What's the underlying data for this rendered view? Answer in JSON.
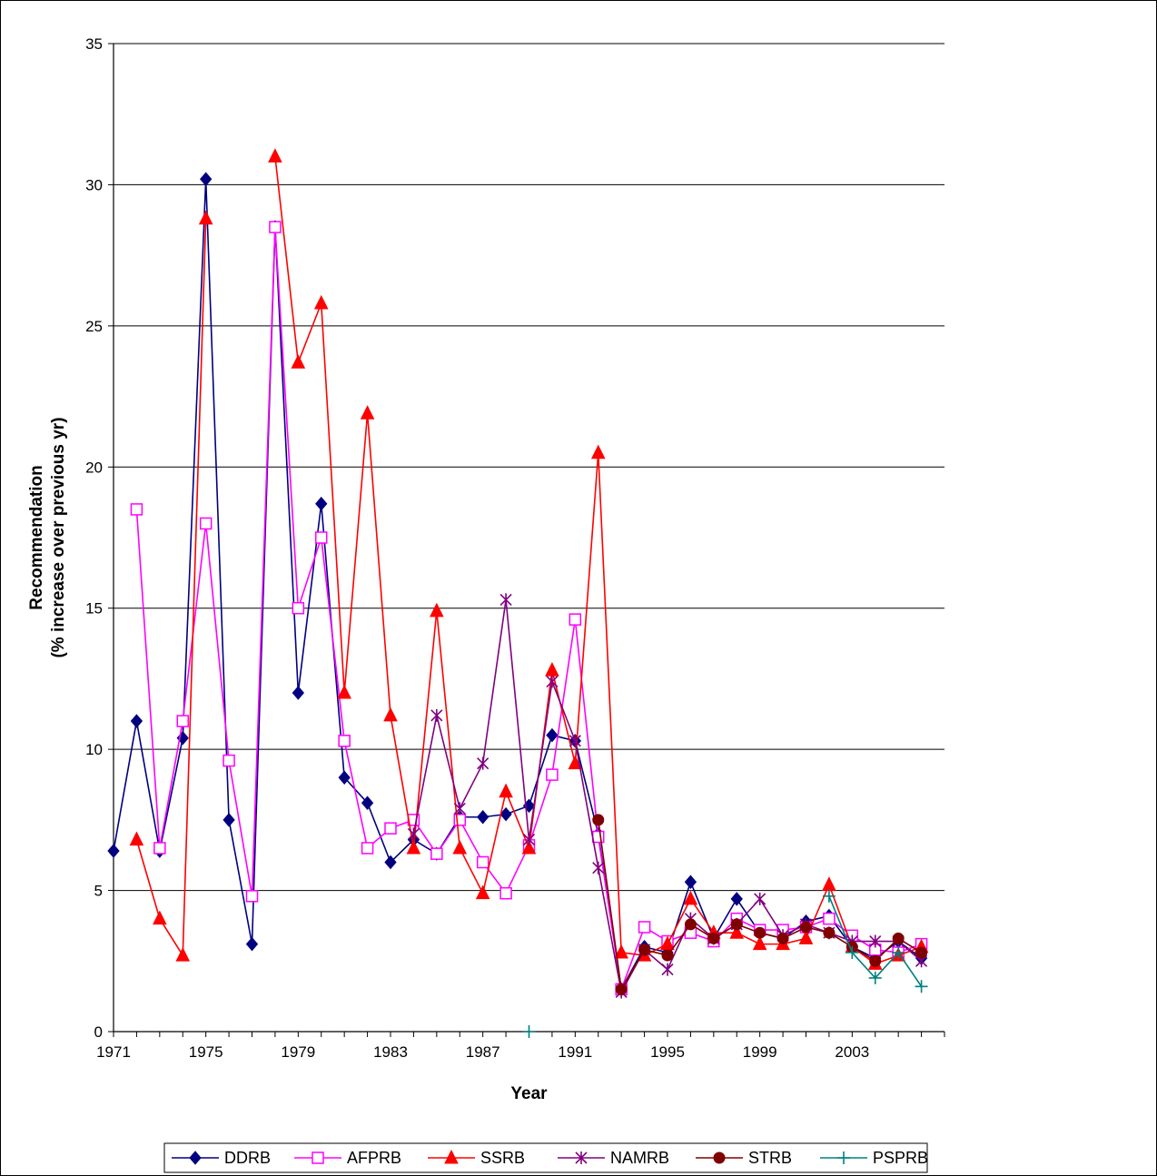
{
  "chart_data": {
    "type": "line",
    "title": "",
    "xlabel": "Year",
    "ylabel_line1": "Recommendation",
    "ylabel_line2": "(% increase over previous yr)",
    "xlim": [
      1971,
      2006
    ],
    "ylim": [
      0,
      35
    ],
    "y_ticks": [
      0,
      5,
      10,
      15,
      20,
      25,
      30,
      35
    ],
    "x_ticks": [
      1971,
      1975,
      1979,
      1983,
      1987,
      1991,
      1995,
      1999,
      2003
    ],
    "grid": "horizontal",
    "legend_position": "bottom",
    "series": [
      {
        "name": "DDRB",
        "color": "#000080",
        "marker": "diamond",
        "points": [
          [
            1971,
            6.4
          ],
          [
            1972,
            11.0
          ],
          [
            1973,
            6.4
          ],
          [
            1974,
            10.4
          ],
          [
            1975,
            30.2
          ],
          [
            1976,
            7.5
          ],
          [
            1977,
            3.1
          ],
          [
            1978,
            28.5
          ],
          [
            1979,
            12.0
          ],
          [
            1980,
            18.7
          ],
          [
            1981,
            9.0
          ],
          [
            1982,
            8.1
          ],
          [
            1983,
            6.0
          ],
          [
            1984,
            6.8
          ],
          [
            1985,
            6.3
          ],
          [
            1986,
            7.6
          ],
          [
            1987,
            7.6
          ],
          [
            1988,
            7.7
          ],
          [
            1989,
            8.0
          ],
          [
            1990,
            10.5
          ],
          [
            1991,
            10.3
          ],
          [
            1992,
            7.0
          ],
          [
            1993,
            1.5
          ],
          [
            1994,
            3.0
          ],
          [
            1995,
            2.8
          ],
          [
            1996,
            5.3
          ],
          [
            1997,
            3.3
          ],
          [
            1998,
            4.7
          ],
          [
            1999,
            3.5
          ],
          [
            2000,
            3.3
          ],
          [
            2001,
            3.9
          ],
          [
            2002,
            4.1
          ],
          [
            2003,
            3.0
          ],
          [
            2004,
            2.6
          ],
          [
            2005,
            3.2
          ],
          [
            2006,
            2.6
          ]
        ]
      },
      {
        "name": "AFPRB",
        "color": "#FF00FF",
        "marker": "square-open",
        "points": [
          [
            1972,
            18.5
          ],
          [
            1973,
            6.5
          ],
          [
            1974,
            11.0
          ],
          [
            1975,
            18.0
          ],
          [
            1976,
            9.6
          ],
          [
            1977,
            4.8
          ],
          [
            1978,
            28.5
          ],
          [
            1979,
            15.0
          ],
          [
            1980,
            17.5
          ],
          [
            1981,
            10.3
          ],
          [
            1982,
            6.5
          ],
          [
            1983,
            7.2
          ],
          [
            1984,
            7.5
          ],
          [
            1985,
            6.3
          ],
          [
            1986,
            7.5
          ],
          [
            1987,
            6.0
          ],
          [
            1988,
            4.9
          ],
          [
            1989,
            6.6
          ],
          [
            1990,
            9.1
          ],
          [
            1991,
            14.6
          ],
          [
            1992,
            6.9
          ],
          [
            1993,
            1.5
          ],
          [
            1994,
            3.7
          ],
          [
            1995,
            3.2
          ],
          [
            1996,
            3.5
          ],
          [
            1997,
            3.2
          ],
          [
            1998,
            4.0
          ],
          [
            1999,
            3.6
          ],
          [
            2000,
            3.6
          ],
          [
            2001,
            3.7
          ],
          [
            2002,
            4.0
          ],
          [
            2003,
            3.4
          ],
          [
            2004,
            2.9
          ],
          [
            2005,
            2.8
          ],
          [
            2006,
            3.1
          ]
        ]
      },
      {
        "name": "SSRB",
        "color": "#FF0000",
        "marker": "triangle",
        "points": [
          [
            1972,
            6.8
          ],
          [
            1973,
            4.0
          ],
          [
            1974,
            2.7
          ],
          [
            1975,
            28.8
          ],
          [
            1978,
            31.0
          ],
          [
            1979,
            23.7
          ],
          [
            1980,
            25.8
          ],
          [
            1981,
            12.0
          ],
          [
            1982,
            21.9
          ],
          [
            1983,
            11.2
          ],
          [
            1984,
            6.5
          ],
          [
            1985,
            14.9
          ],
          [
            1986,
            6.5
          ],
          [
            1987,
            4.9
          ],
          [
            1988,
            8.5
          ],
          [
            1989,
            6.5
          ],
          [
            1990,
            12.8
          ],
          [
            1991,
            9.5
          ],
          [
            1992,
            20.5
          ],
          [
            1993,
            2.8
          ],
          [
            1994,
            2.7
          ],
          [
            1995,
            3.1
          ],
          [
            1996,
            4.7
          ],
          [
            1997,
            3.5
          ],
          [
            1998,
            3.5
          ],
          [
            1999,
            3.1
          ],
          [
            2000,
            3.1
          ],
          [
            2001,
            3.3
          ],
          [
            2002,
            5.2
          ],
          [
            2003,
            3.0
          ],
          [
            2004,
            2.4
          ],
          [
            2005,
            2.7
          ],
          [
            2006,
            3.0
          ]
        ]
      },
      {
        "name": "NAMRB",
        "color": "#800080",
        "marker": "star",
        "points": [
          [
            1984,
            7.0
          ],
          [
            1985,
            11.2
          ],
          [
            1986,
            7.9
          ],
          [
            1987,
            9.5
          ],
          [
            1988,
            15.3
          ],
          [
            1989,
            6.8
          ],
          [
            1990,
            12.4
          ],
          [
            1991,
            10.3
          ],
          [
            1992,
            5.8
          ],
          [
            1993,
            1.4
          ],
          [
            1994,
            2.9
          ],
          [
            1995,
            2.2
          ],
          [
            1996,
            4.0
          ],
          [
            1997,
            3.3
          ],
          [
            1998,
            3.8
          ],
          [
            1999,
            4.7
          ],
          [
            2000,
            3.4
          ],
          [
            2001,
            3.8
          ],
          [
            2002,
            3.5
          ],
          [
            2003,
            3.2
          ],
          [
            2004,
            3.2
          ],
          [
            2005,
            3.2
          ],
          [
            2006,
            2.5
          ]
        ]
      },
      {
        "name": "STRB",
        "color": "#800000",
        "marker": "circle",
        "points": [
          [
            1992,
            7.5
          ],
          [
            1993,
            1.5
          ],
          [
            1994,
            2.9
          ],
          [
            1995,
            2.7
          ],
          [
            1996,
            3.8
          ],
          [
            1997,
            3.3
          ],
          [
            1998,
            3.8
          ],
          [
            1999,
            3.5
          ],
          [
            2000,
            3.3
          ],
          [
            2001,
            3.7
          ],
          [
            2002,
            3.5
          ],
          [
            2003,
            3.0
          ],
          [
            2004,
            2.5
          ],
          [
            2005,
            3.3
          ],
          [
            2006,
            2.8
          ]
        ]
      },
      {
        "name": "PSPRB",
        "color": "#008080",
        "marker": "plus",
        "points": [
          [
            1989,
            0.0
          ],
          [
            2002,
            4.8
          ],
          [
            2003,
            2.8
          ],
          [
            2004,
            1.9
          ],
          [
            2005,
            2.8
          ],
          [
            2006,
            1.6
          ]
        ]
      }
    ]
  }
}
